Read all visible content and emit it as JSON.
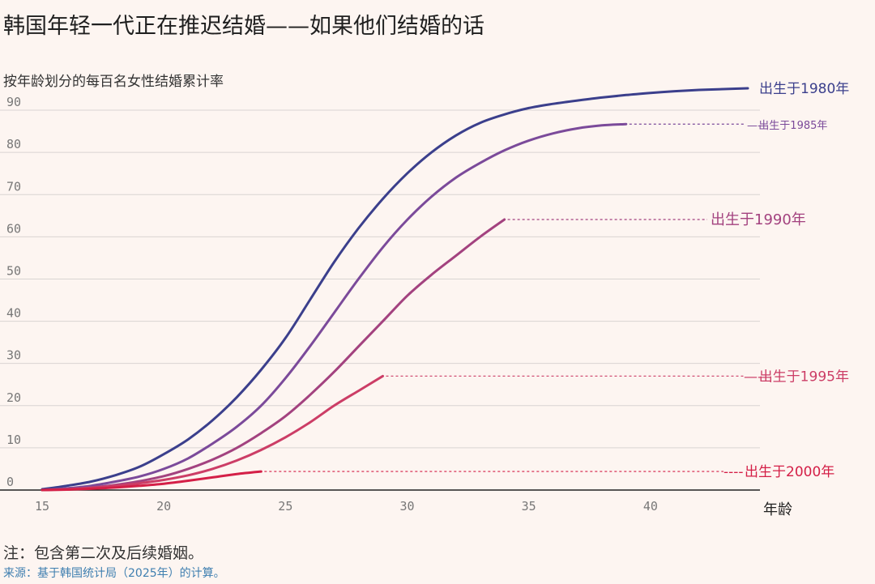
{
  "header": {
    "title": "韩国年轻一代正在推迟结婚——如果他们结婚的话",
    "subtitle": "按年龄划分的每百名女性结婚累计率"
  },
  "footer": {
    "note": "注：包含第二次及后续婚姻。",
    "source": "来源：基于韩国统计局（2025年）的计算。"
  },
  "chart_data": {
    "type": "line",
    "xlabel": "年龄",
    "ylabel": "",
    "xlim": [
      15,
      44.5
    ],
    "ylim": [
      0,
      95
    ],
    "xticks": [
      "15",
      "20",
      "25",
      "30",
      "35",
      "40"
    ],
    "yticks": [
      "0",
      "10",
      "20",
      "30",
      "40",
      "50",
      "60",
      "70",
      "80",
      "90"
    ],
    "grid": "horizontal",
    "series": [
      {
        "name": "出生于1980年",
        "label": "出生于1980年",
        "color": "#3b3f8c",
        "x": [
          15,
          16,
          17,
          18,
          19,
          20,
          21,
          22,
          23,
          24,
          25,
          26,
          27,
          28,
          29,
          30,
          31,
          32,
          33,
          34,
          35,
          36,
          37,
          38,
          39,
          40,
          41,
          42,
          43,
          44
        ],
        "y": [
          0.2,
          1,
          2,
          3.5,
          5.5,
          8.5,
          12,
          16.5,
          22,
          28.5,
          36,
          45,
          54,
          62,
          69,
          75,
          80,
          84,
          87,
          89,
          90.5,
          91.5,
          92.3,
          93,
          93.6,
          94.1,
          94.5,
          94.8,
          95,
          95.2
        ]
      },
      {
        "name": "出生于1985年",
        "label": "出生于1985年",
        "color": "#7b4a9a",
        "x": [
          15,
          16,
          17,
          18,
          19,
          20,
          21,
          22,
          23,
          24,
          25,
          26,
          27,
          28,
          29,
          30,
          31,
          32,
          33,
          34,
          35,
          36,
          37,
          38,
          39
        ],
        "y": [
          0,
          0.4,
          1,
          2,
          3.2,
          5,
          7.5,
          11,
          15,
          20,
          26.5,
          34,
          42,
          50,
          57.5,
          64,
          69.5,
          74,
          77.5,
          80.5,
          82.8,
          84.5,
          85.7,
          86.4,
          86.7
        ]
      },
      {
        "name": "出生于1990年",
        "label": "出生于1990年",
        "color": "#a3427f",
        "x": [
          15,
          16,
          17,
          18,
          19,
          20,
          21,
          22,
          23,
          24,
          25,
          26,
          27,
          28,
          29,
          30,
          31,
          32,
          33,
          34
        ],
        "y": [
          0,
          0.2,
          0.6,
          1.2,
          2.1,
          3.3,
          5,
          7.2,
          10,
          13.5,
          17.5,
          22.5,
          28,
          34,
          40,
          46,
          51,
          55.5,
          60,
          64.1
        ]
      },
      {
        "name": "出生于1995年",
        "label": "出生于1995年",
        "color": "#cc3d66",
        "x": [
          15,
          16,
          17,
          18,
          19,
          20,
          21,
          22,
          23,
          24,
          25,
          26,
          27,
          28,
          29
        ],
        "y": [
          0,
          0.2,
          0.5,
          1,
          1.6,
          2.4,
          3.5,
          5,
          7,
          9.5,
          12.5,
          16,
          20,
          23.5,
          27
        ]
      },
      {
        "name": "出生于2000年",
        "label": "出生于2000年",
        "color": "#d41f47",
        "x": [
          15,
          16,
          17,
          18,
          19,
          20,
          21,
          22,
          23,
          24
        ],
        "y": [
          0,
          0.1,
          0.3,
          0.6,
          1,
          1.5,
          2.2,
          3,
          3.8,
          4.4
        ]
      }
    ]
  }
}
